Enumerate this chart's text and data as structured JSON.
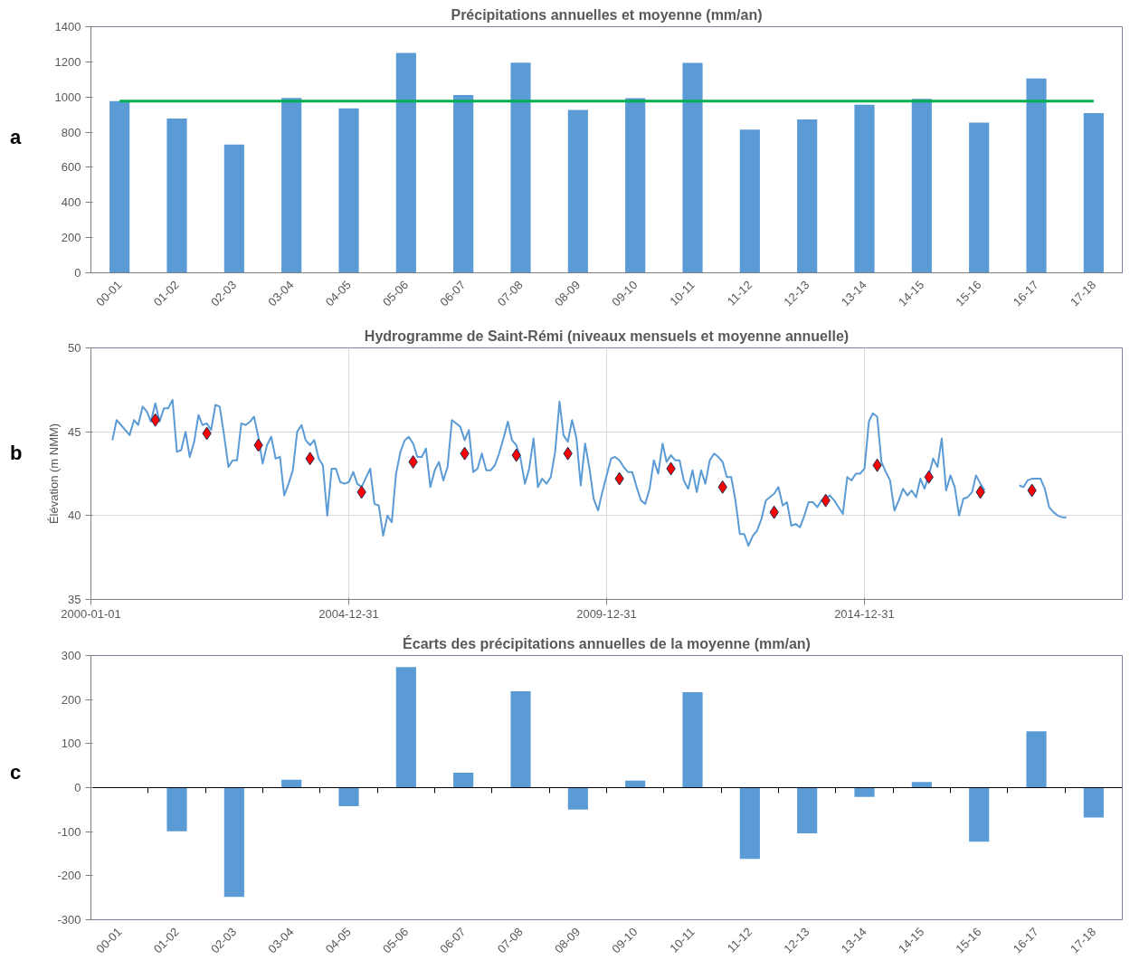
{
  "chart_data": [
    {
      "type": "bar",
      "title": "Précipitations annuelles et moyenne (mm/an)",
      "annotations": [
        "a"
      ],
      "categories": [
        "00-01",
        "01-02",
        "02-03",
        "03-04",
        "04-05",
        "05-06",
        "06-07",
        "07-08",
        "08-09",
        "09-10",
        "10-11",
        "11-12",
        "12-13",
        "13-14",
        "14-15",
        "15-16",
        "16-17",
        "17-18"
      ],
      "series": [
        {
          "color": "#5b9bd5",
          "values": [
            977,
            878,
            729,
            995,
            935,
            1251,
            1011,
            1196,
            927,
            993,
            1194,
            815,
            873,
            956,
            990,
            854,
            1105,
            909
          ]
        }
      ],
      "ref_lines": [
        {
          "axis": "y",
          "value": 977,
          "label": null,
          "color": "#00b050"
        }
      ],
      "ylim": [
        0,
        1400
      ],
      "yticks": [
        0,
        200,
        400,
        600,
        800,
        1000,
        1200,
        1400
      ]
    },
    {
      "type": "line",
      "title": "Hydrogramme de Saint-Rémi (niveaux mensuels et moyenne annuelle)",
      "ylabel": "Élévation (m NMM)",
      "annotations": [
        "b"
      ],
      "series": [
        {
          "type": "line",
          "color": "#5b9bd5",
          "marker": "none",
          "x": [
            "2000-06",
            "2000-07",
            "2000-08",
            "2000-10",
            "2000-11",
            "2000-12",
            "2001-01",
            "2001-02",
            "2001-03",
            "2001-04",
            "2001-05",
            "2001-06",
            "2001-07",
            "2001-08",
            "2001-09",
            "2001-10",
            "2001-11",
            "2001-12",
            "2002-01",
            "2002-02",
            "2002-03",
            "2002-04",
            "2002-05",
            "2002-06",
            "2002-07",
            "2002-08",
            "2002-09",
            "2002-10",
            "2002-11",
            "2002-12",
            "2003-01",
            "2003-02",
            "2003-03",
            "2003-04",
            "2003-05",
            "2003-06",
            "2003-07",
            "2003-08",
            "2003-09",
            "2003-10",
            "2003-11",
            "2003-12",
            "2004-01",
            "2004-02",
            "2004-03",
            "2004-04",
            "2004-05",
            "2004-06",
            "2004-07",
            "2004-08",
            "2004-09",
            "2004-10",
            "2004-11",
            "2004-12",
            "2005-01",
            "2005-02",
            "2005-03",
            "2005-04",
            "2005-06",
            "2005-07",
            "2005-08",
            "2005-09",
            "2005-10",
            "2005-11",
            "2005-12",
            "2006-01",
            "2006-02",
            "2006-03",
            "2006-04",
            "2006-05",
            "2006-06",
            "2006-07",
            "2006-08",
            "2006-09",
            "2006-10",
            "2006-11",
            "2006-12",
            "2007-01",
            "2007-03",
            "2007-04",
            "2007-05",
            "2007-06",
            "2007-07",
            "2007-08",
            "2007-09",
            "2007-10",
            "2007-11",
            "2007-12",
            "2008-01",
            "2008-02",
            "2008-03",
            "2008-04",
            "2008-05",
            "2008-06",
            "2008-07",
            "2008-08",
            "2008-09",
            "2008-10",
            "2008-11",
            "2008-12",
            "2009-01",
            "2009-02",
            "2009-03",
            "2009-04",
            "2009-05",
            "2009-06",
            "2009-07",
            "2009-08",
            "2009-09",
            "2009-10",
            "2009-11",
            "2009-12",
            "2010-01",
            "2010-02",
            "2010-03",
            "2010-04",
            "2010-05",
            "2010-06",
            "2010-07",
            "2010-08",
            "2010-09",
            "2010-10",
            "2010-11",
            "2010-12",
            "2011-01",
            "2011-02",
            "2011-03",
            "2011-04",
            "2011-05",
            "2011-06",
            "2011-07",
            "2011-08",
            "2011-09",
            "2011-10",
            "2011-11",
            "2011-12",
            "2012-01",
            "2012-02",
            "2012-03",
            "2012-04",
            "2012-05",
            "2012-06",
            "2012-07",
            "2012-08",
            "2012-09",
            "2012-10",
            "2012-11",
            "2012-12",
            "2013-01",
            "2013-02",
            "2013-03",
            "2013-04",
            "2013-05",
            "2013-06",
            "2013-07",
            "2013-08",
            "2013-09",
            "2013-10",
            "2013-11",
            "2013-12",
            "2014-01",
            "2014-02",
            "2014-03",
            "2014-04",
            "2014-05",
            "2014-06",
            "2014-07",
            "2014-08",
            "2014-09",
            "2014-10",
            "2014-11",
            "2014-12",
            "2015-01",
            "2015-02",
            "2015-03",
            "2015-04",
            "2015-05",
            "2015-06",
            "2015-07",
            "2015-08",
            "2015-09",
            "2015-10",
            "2015-11",
            "2015-12",
            "2016-01",
            "2016-02",
            "2016-03",
            "2016-04",
            "2016-05",
            "2016-06",
            "2016-07",
            "2016-08",
            "2016-09",
            "2016-10",
            "2016-11",
            "2016-12",
            "2017-01",
            "2017-02",
            "2017-03",
            "2017-04",
            "2017-05",
            "2017-09",
            "2018-01",
            "2018-02",
            "2018-03",
            "2018-04",
            "2018-05",
            "2018-06",
            "2018-07",
            "2018-08",
            "2018-09",
            "2018-10",
            "2018-11",
            "2018-12"
          ],
          "values": [
            44.5,
            45.7,
            45.4,
            44.8,
            45.7,
            45.4,
            46.5,
            46.2,
            45.6,
            46.7,
            45.6,
            46.4,
            46.4,
            46.9,
            43.8,
            43.9,
            45.0,
            43.5,
            44.4,
            46.0,
            45.4,
            45.5,
            45.1,
            46.6,
            46.5,
            44.8,
            42.9,
            43.3,
            43.3,
            45.5,
            45.4,
            45.6,
            45.9,
            44.7,
            43.1,
            44.2,
            44.7,
            43.4,
            43.5,
            41.2,
            41.9,
            42.7,
            45.0,
            45.4,
            44.5,
            44.2,
            44.5,
            43.4,
            43.0,
            40.0,
            42.8,
            42.8,
            42.0,
            41.9,
            42.0,
            42.6,
            41.9,
            41.7,
            42.8,
            40.7,
            40.6,
            38.8,
            40.0,
            39.6,
            42.5,
            43.8,
            44.5,
            44.7,
            44.3,
            43.5,
            43.5,
            44.0,
            41.7,
            42.7,
            43.2,
            42.1,
            42.9,
            45.7,
            45.3,
            44.5,
            45.1,
            42.6,
            42.8,
            43.7,
            42.7,
            42.7,
            43.0,
            43.7,
            44.6,
            45.6,
            44.5,
            44.2,
            43.4,
            41.9,
            42.8,
            44.6,
            41.7,
            42.2,
            41.9,
            42.3,
            43.8,
            46.8,
            44.8,
            44.4,
            45.7,
            44.6,
            41.8,
            44.3,
            42.8,
            41.0,
            40.3,
            41.4,
            42.4,
            43.4,
            43.5,
            43.3,
            42.9,
            42.6,
            42.6,
            41.7,
            40.9,
            40.7,
            41.6,
            43.3,
            42.5,
            44.3,
            43.2,
            43.6,
            43.3,
            43.3,
            42.1,
            41.6,
            42.7,
            41.4,
            42.7,
            41.9,
            43.3,
            43.7,
            43.5,
            43.2,
            42.3,
            42.3,
            40.9,
            38.9,
            38.9,
            38.2,
            38.8,
            39.1,
            39.8,
            40.9,
            41.1,
            41.3,
            41.7,
            40.6,
            40.8,
            39.4,
            39.5,
            39.3,
            40.0,
            40.8,
            40.8,
            40.5,
            40.9,
            41.0,
            41.2,
            40.9,
            40.5,
            40.1,
            42.3,
            42.1,
            42.5,
            42.5,
            42.8,
            45.6,
            46.1,
            45.9,
            43.2,
            42.6,
            42.1,
            40.3,
            40.9,
            41.6,
            41.2,
            41.5,
            41.1,
            42.2,
            41.6,
            42.4,
            43.4,
            42.9,
            44.6,
            41.5,
            42.4,
            41.7,
            40.0,
            41.0,
            41.1,
            41.4,
            42.4,
            41.9,
            41.5,
            null,
            41.8,
            41.7,
            42.1,
            42.2,
            42.2,
            42.2,
            41.6,
            40.5,
            40.2,
            40.0,
            39.9,
            39.9
          ]
        },
        {
          "type": "scatter",
          "color": "#ff0000",
          "marker": "diamond",
          "x": [
            "2001-04",
            "2002-04",
            "2003-04",
            "2004-04",
            "2005-04",
            "2006-04",
            "2007-04",
            "2008-04",
            "2009-04",
            "2010-04",
            "2011-04",
            "2012-04",
            "2013-04",
            "2014-04",
            "2015-04",
            "2016-04",
            "2017-04",
            "2018-04"
          ],
          "values": [
            45.7,
            44.9,
            44.2,
            43.4,
            41.4,
            43.2,
            43.7,
            43.6,
            43.7,
            42.2,
            42.8,
            41.7,
            40.2,
            40.9,
            43.0,
            42.3,
            41.4,
            41.5
          ]
        }
      ],
      "xlim": [
        "2000-01-01",
        "2020-01-01"
      ],
      "xticks": [
        "2000-01-01",
        "2004-12-31",
        "2009-12-31",
        "2014-12-31"
      ],
      "ylim": [
        35,
        50
      ],
      "yticks": [
        35,
        40,
        45,
        50
      ],
      "grid": true
    },
    {
      "type": "bar",
      "title": "Écarts des précipitations annuelles de la moyenne (mm/an)",
      "annotations": [
        "c"
      ],
      "categories": [
        "00-01",
        "01-02",
        "02-03",
        "03-04",
        "04-05",
        "05-06",
        "06-07",
        "07-08",
        "08-09",
        "09-10",
        "10-11",
        "11-12",
        "12-13",
        "13-14",
        "14-15",
        "15-16",
        "16-17",
        "17-18"
      ],
      "series": [
        {
          "color": "#5b9bd5",
          "values": [
            0,
            -99,
            -248,
            18,
            -42,
            274,
            34,
            219,
            -50,
            16,
            217,
            -162,
            -104,
            -21,
            13,
            -123,
            128,
            -68
          ]
        }
      ],
      "ylim": [
        -300,
        300
      ],
      "yticks": [
        -300,
        -200,
        -100,
        0,
        100,
        200,
        300
      ]
    }
  ]
}
